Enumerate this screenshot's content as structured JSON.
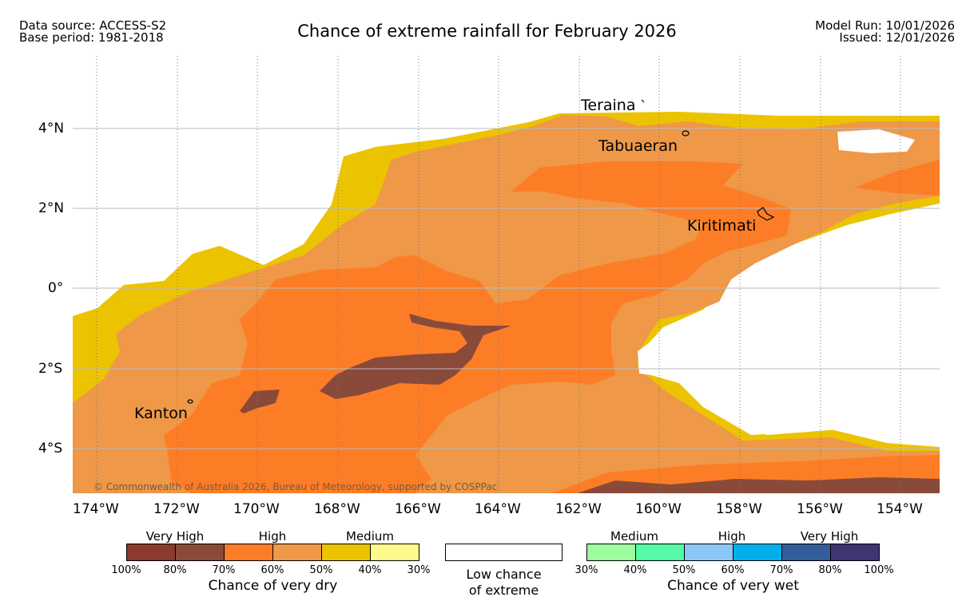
{
  "header": {
    "left_line1": "Data source: ACCESS-S2",
    "left_line2": "Base period: 1981-2018",
    "title": "Chance of extreme rainfall for February 2026",
    "right_line1": "Model Run: 10/01/2026",
    "right_line2": "Issued: 12/01/2026"
  },
  "axes": {
    "lat_ticks": [
      "4°N",
      "2°N",
      "0°",
      "2°S",
      "4°S"
    ],
    "lon_ticks": [
      "174°W",
      "172°W",
      "170°W",
      "168°W",
      "166°W",
      "164°W",
      "162°W",
      "160°W",
      "158°W",
      "156°W",
      "154°W"
    ],
    "grid": "dotted"
  },
  "places": [
    "Teraina",
    "Tabuaeran",
    "Kiritimati",
    "Kanton"
  ],
  "copyright": "© Commonwealth of Australia 2026, Bureau of Meteorology, supported by COSPPac",
  "colors": {
    "dry_100_80": "#8b3a2f",
    "dry_80_70": "#8a4a3a",
    "dry_70_60": "#fd7d26",
    "dry_60_50": "#ee9848",
    "dry_50_40": "#ecc300",
    "dry_40_30": "#fff88a",
    "low_chance": "#ffffff",
    "wet_30_40": "#9dfc9d",
    "wet_40_50": "#55fba6",
    "wet_50_60": "#8ac7f7",
    "wet_60_70": "#00aeec",
    "wet_70_80": "#345d9c",
    "wet_80_100": "#3e3573"
  },
  "legend": {
    "dry": {
      "headings": [
        "Very High",
        "High",
        "Medium"
      ],
      "ticks": [
        "100%",
        "80%",
        "70%",
        "60%",
        "50%",
        "40%",
        "30%"
      ],
      "title": "Chance of very dry"
    },
    "low": {
      "line1": "Low chance",
      "line2": "of extreme"
    },
    "wet": {
      "headings": [
        "Medium",
        "High",
        "Very High"
      ],
      "ticks": [
        "30%",
        "40%",
        "50%",
        "60%",
        "70%",
        "80%",
        "100%"
      ],
      "title": "Chance of very wet"
    }
  }
}
